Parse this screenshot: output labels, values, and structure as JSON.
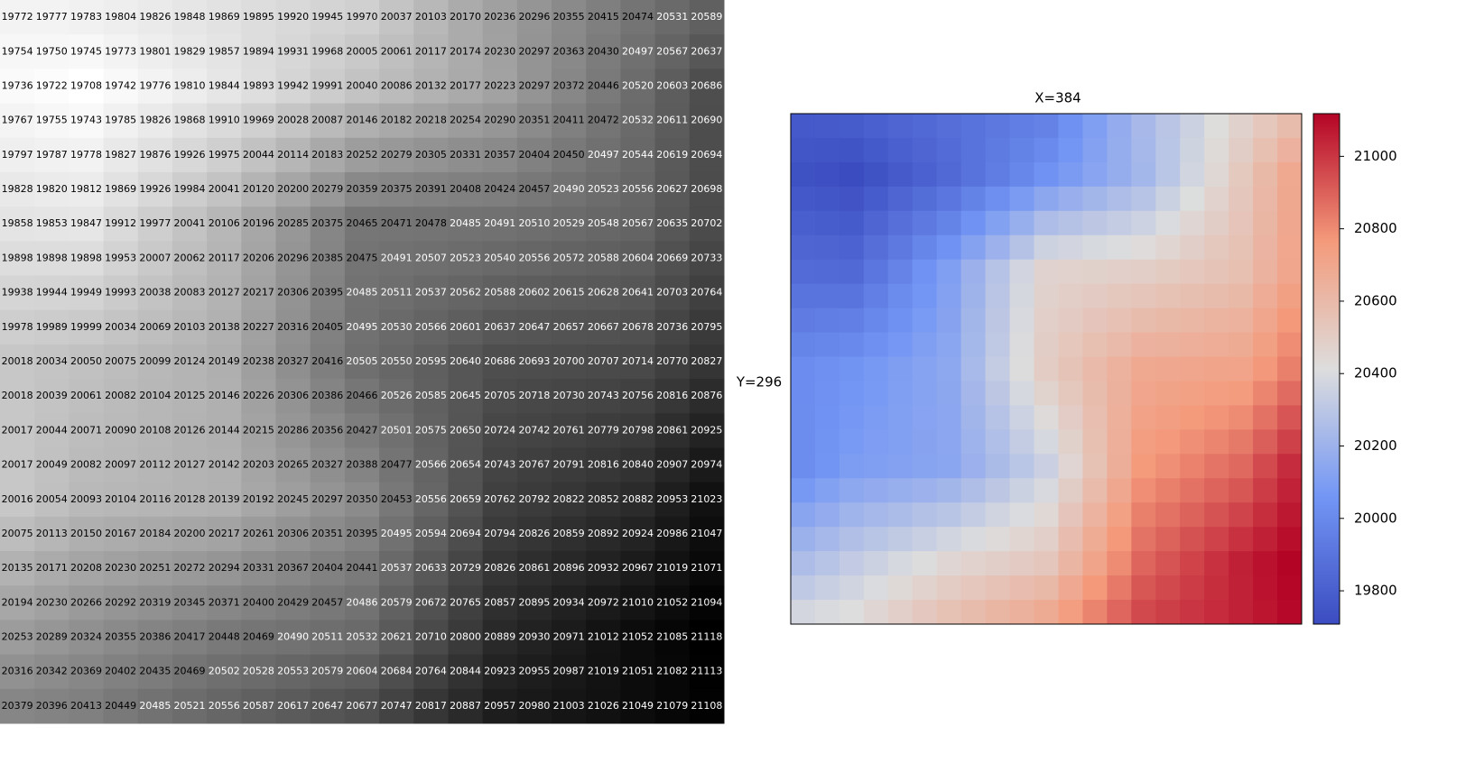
{
  "table": {
    "rows": [
      [
        19772,
        19777,
        19783,
        19804,
        19826,
        19848,
        19869,
        19895,
        19920,
        19945,
        19970,
        20037,
        20103,
        20170,
        20236,
        20296,
        20355,
        20415,
        20474,
        20531,
        20589
      ],
      [
        19754,
        19750,
        19745,
        19773,
        19801,
        19829,
        19857,
        19894,
        19931,
        19968,
        20005,
        20061,
        20117,
        20174,
        20230,
        20297,
        20363,
        20430,
        20497,
        20567,
        20637
      ],
      [
        19736,
        19722,
        19708,
        19742,
        19776,
        19810,
        19844,
        19893,
        19942,
        19991,
        20040,
        20086,
        20132,
        20177,
        20223,
        20297,
        20372,
        20446,
        20520,
        20603,
        20686
      ],
      [
        19767,
        19755,
        19743,
        19785,
        19826,
        19868,
        19910,
        19969,
        20028,
        20087,
        20146,
        20182,
        20218,
        20254,
        20290,
        20351,
        20411,
        20472,
        20532,
        20611,
        20690
      ],
      [
        19797,
        19787,
        19778,
        19827,
        19876,
        19926,
        19975,
        20044,
        20114,
        20183,
        20252,
        20279,
        20305,
        20331,
        20357,
        20404,
        20450,
        20497,
        20544,
        20619,
        20694
      ],
      [
        19828,
        19820,
        19812,
        19869,
        19926,
        19984,
        20041,
        20120,
        20200,
        20279,
        20359,
        20375,
        20391,
        20408,
        20424,
        20457,
        20490,
        20523,
        20556,
        20627,
        20698
      ],
      [
        19858,
        19853,
        19847,
        19912,
        19977,
        20041,
        20106,
        20196,
        20285,
        20375,
        20465,
        20471,
        20478,
        20485,
        20491,
        20510,
        20529,
        20548,
        20567,
        20635,
        20702
      ],
      [
        19898,
        19898,
        19898,
        19953,
        20007,
        20062,
        20117,
        20206,
        20296,
        20385,
        20475,
        20491,
        20507,
        20523,
        20540,
        20556,
        20572,
        20588,
        20604,
        20669,
        20733
      ],
      [
        19938,
        19944,
        19949,
        19993,
        20038,
        20083,
        20127,
        20217,
        20306,
        20395,
        20485,
        20511,
        20537,
        20562,
        20588,
        20602,
        20615,
        20628,
        20641,
        20703,
        20764
      ],
      [
        19978,
        19989,
        19999,
        20034,
        20069,
        20103,
        20138,
        20227,
        20316,
        20405,
        20495,
        20530,
        20566,
        20601,
        20637,
        20647,
        20657,
        20667,
        20678,
        20736,
        20795
      ],
      [
        20018,
        20034,
        20050,
        20075,
        20099,
        20124,
        20149,
        20238,
        20327,
        20416,
        20505,
        20550,
        20595,
        20640,
        20686,
        20693,
        20700,
        20707,
        20714,
        20770,
        20827
      ],
      [
        20018,
        20039,
        20061,
        20082,
        20104,
        20125,
        20146,
        20226,
        20306,
        20386,
        20466,
        20526,
        20585,
        20645,
        20705,
        20718,
        20730,
        20743,
        20756,
        20816,
        20876
      ],
      [
        20017,
        20044,
        20071,
        20090,
        20108,
        20126,
        20144,
        20215,
        20286,
        20356,
        20427,
        20501,
        20575,
        20650,
        20724,
        20742,
        20761,
        20779,
        20798,
        20861,
        20925
      ],
      [
        20017,
        20049,
        20082,
        20097,
        20112,
        20127,
        20142,
        20203,
        20265,
        20327,
        20388,
        20477,
        20566,
        20654,
        20743,
        20767,
        20791,
        20816,
        20840,
        20907,
        20974
      ],
      [
        20016,
        20054,
        20093,
        20104,
        20116,
        20128,
        20139,
        20192,
        20245,
        20297,
        20350,
        20453,
        20556,
        20659,
        20762,
        20792,
        20822,
        20852,
        20882,
        20953,
        21023
      ],
      [
        20075,
        20113,
        20150,
        20167,
        20184,
        20200,
        20217,
        20261,
        20306,
        20351,
        20395,
        20495,
        20594,
        20694,
        20794,
        20826,
        20859,
        20892,
        20924,
        20986,
        21047
      ],
      [
        20135,
        20171,
        20208,
        20230,
        20251,
        20272,
        20294,
        20331,
        20367,
        20404,
        20441,
        20537,
        20633,
        20729,
        20826,
        20861,
        20896,
        20932,
        20967,
        21019,
        21071
      ],
      [
        20194,
        20230,
        20266,
        20292,
        20319,
        20345,
        20371,
        20400,
        20429,
        20457,
        20486,
        20579,
        20672,
        20765,
        20857,
        20895,
        20934,
        20972,
        21010,
        21052,
        21094
      ],
      [
        20253,
        20289,
        20324,
        20355,
        20386,
        20417,
        20448,
        20469,
        20490,
        20511,
        20532,
        20621,
        20710,
        20800,
        20889,
        20930,
        20971,
        21012,
        21052,
        21085,
        21118
      ],
      [
        20316,
        20342,
        20369,
        20402,
        20435,
        20469,
        20502,
        20528,
        20553,
        20579,
        20604,
        20684,
        20764,
        20844,
        20923,
        20955,
        20987,
        21019,
        21051,
        21082,
        21113
      ],
      [
        20379,
        20396,
        20413,
        20449,
        20485,
        20521,
        20556,
        20587,
        20617,
        20647,
        20677,
        20747,
        20817,
        20887,
        20957,
        20980,
        21003,
        21026,
        21049,
        21079,
        21108
      ]
    ]
  },
  "heatmap": {
    "type": "heatmap",
    "title": "X=384",
    "ylabel": "Y=296",
    "clim": [
      19708,
      21118
    ],
    "colorbar_ticks": [
      19800,
      20000,
      20200,
      20400,
      20600,
      20800,
      21000
    ],
    "colors": [
      "#3b4cc0",
      "#7396f5",
      "#dddddd",
      "#f49a7b",
      "#b40426"
    ],
    "table_colors": [
      "#ffffff",
      "#000000"
    ]
  }
}
